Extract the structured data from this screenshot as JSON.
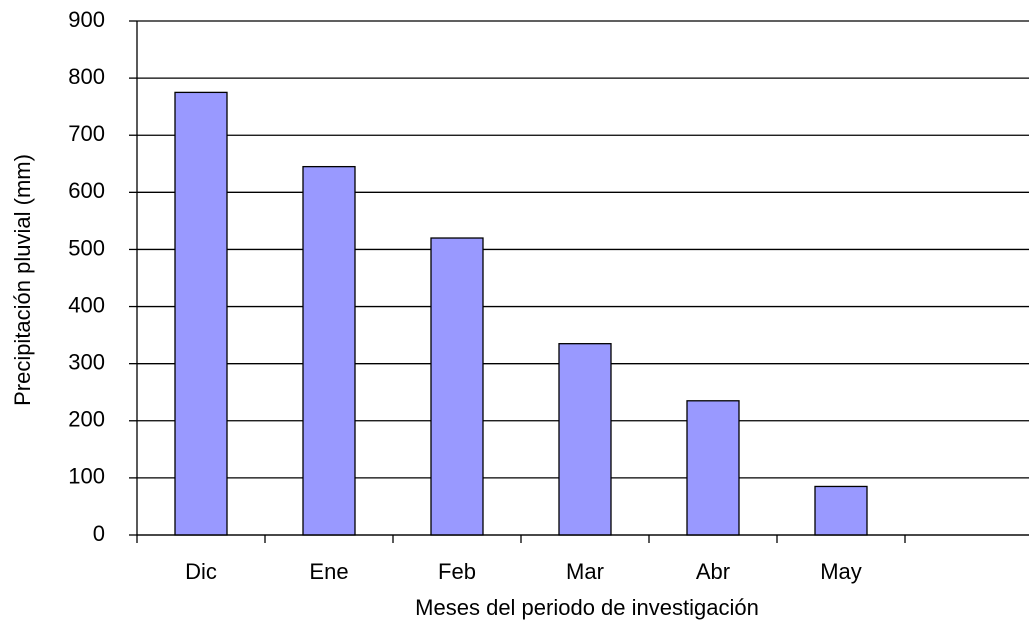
{
  "chart_data": {
    "type": "bar",
    "x_label": "Meses del periodo de investigación",
    "y_label": "Precipitación pluvial (mm)",
    "categories": [
      "Dic",
      "Ene",
      "Feb",
      "Mar",
      "Abr",
      "May",
      null
    ],
    "values": [
      775,
      645,
      520,
      335,
      235,
      85,
      null
    ],
    "color": "#9999ff",
    "ylim": [
      0,
      900
    ],
    "yticks": [
      0,
      100,
      200,
      300,
      400,
      500,
      600,
      700,
      800,
      900
    ],
    "grid": true
  }
}
